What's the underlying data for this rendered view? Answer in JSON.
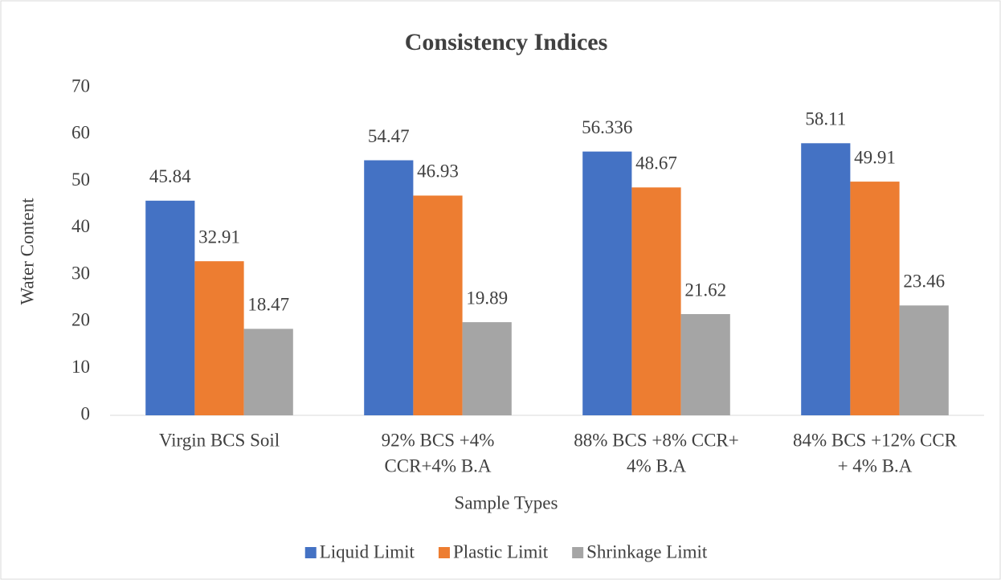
{
  "chart_data": {
    "type": "bar",
    "title": "Consistency Indices",
    "x_label": "Sample Types",
    "y_label": "Water Content",
    "categories": [
      [
        "Virgin BCS Soil"
      ],
      [
        "92% BCS +4%",
        "CCR+4% B.A"
      ],
      [
        "88% BCS +8% CCR+",
        "4% B.A"
      ],
      [
        "84% BCS +12% CCR",
        "+ 4% B.A"
      ]
    ],
    "series": [
      {
        "name": "Liquid Limit",
        "color": "#4472c4",
        "values": [
          45.84,
          54.47,
          56.336,
          58.11
        ]
      },
      {
        "name": "Plastic Limit",
        "color": "#ed7d31",
        "values": [
          32.91,
          46.93,
          48.67,
          49.91
        ]
      },
      {
        "name": "Shrinkage Limit",
        "color": "#a5a5a5",
        "values": [
          18.47,
          19.89,
          21.62,
          23.46
        ]
      }
    ],
    "ylim": [
      0,
      70
    ],
    "yticks": [
      0,
      10,
      20,
      30,
      40,
      50,
      60,
      70
    ],
    "grid": false,
    "legend": "bottom"
  }
}
